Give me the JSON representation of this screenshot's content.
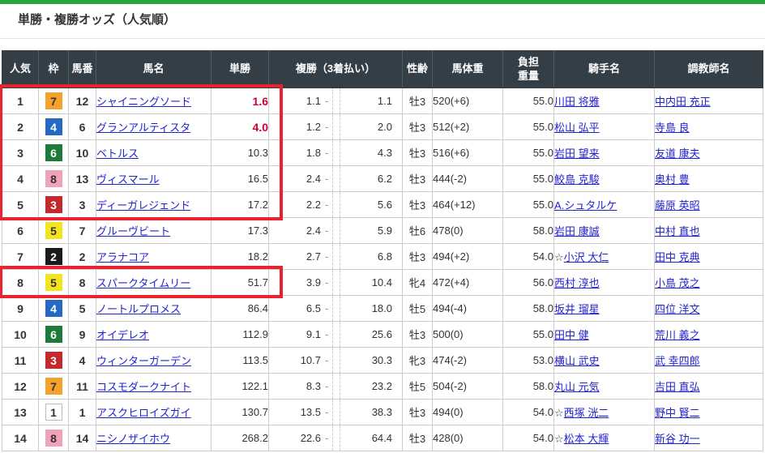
{
  "page": {
    "title": "単勝・複勝オッズ（人気順）"
  },
  "colors": {
    "accent_green": "#28a43c",
    "header_bg": "#333e47",
    "highlight_red": "#e8232d",
    "odds_red": "#cc0033",
    "link_blue": "#2222cc",
    "frame_colors": {
      "1": {
        "bg": "#ffffff",
        "text": "#333333",
        "border": "#bbbbbb"
      },
      "2": {
        "bg": "#1a1a1a",
        "text": "#ffffff",
        "border": "#1a1a1a"
      },
      "3": {
        "bg": "#c3282d",
        "text": "#ffffff",
        "border": "#c3282d"
      },
      "4": {
        "bg": "#2469c3",
        "text": "#ffffff",
        "border": "#2469c3"
      },
      "5": {
        "bg": "#f2e520",
        "text": "#333333",
        "border": "#f2e520"
      },
      "6": {
        "bg": "#1e7a38",
        "text": "#ffffff",
        "border": "#1e7a38"
      },
      "7": {
        "bg": "#f5a12d",
        "text": "#333333",
        "border": "#f5a12d"
      },
      "8": {
        "bg": "#f0a2b8",
        "text": "#333333",
        "border": "#f0a2b8"
      }
    }
  },
  "table": {
    "headers": [
      {
        "key": "rank",
        "label": "人気"
      },
      {
        "key": "frame",
        "label": "枠"
      },
      {
        "key": "uma",
        "label": "馬番"
      },
      {
        "key": "horse",
        "label": "馬名"
      },
      {
        "key": "win",
        "label": "単勝"
      },
      {
        "key": "place",
        "label": "複勝（3着払い）"
      },
      {
        "key": "sex",
        "label": "性齢"
      },
      {
        "key": "weight",
        "label": "馬体重"
      },
      {
        "key": "load",
        "label": "負担\n重量"
      },
      {
        "key": "jockey",
        "label": "騎手名"
      },
      {
        "key": "trainer",
        "label": "調教師名"
      }
    ],
    "rows": [
      {
        "rank": "1",
        "frame": "7",
        "uma": "12",
        "horse": "シャイニングソード",
        "win": "1.6",
        "win_emphasis": true,
        "place_low": "1.1",
        "place_high": "1.1",
        "sex_age": "牡3",
        "weight": "520(+6)",
        "load": "55.0",
        "jockey_mark": "",
        "jockey": "川田 将雅",
        "trainer": "中内田 充正"
      },
      {
        "rank": "2",
        "frame": "4",
        "uma": "6",
        "horse": "グランアルティスタ",
        "win": "4.0",
        "win_emphasis": true,
        "place_low": "1.2",
        "place_high": "2.0",
        "sex_age": "牡3",
        "weight": "512(+2)",
        "load": "55.0",
        "jockey_mark": "",
        "jockey": "松山 弘平",
        "trainer": "寺島 良"
      },
      {
        "rank": "3",
        "frame": "6",
        "uma": "10",
        "horse": "ベトルス",
        "win": "10.3",
        "win_emphasis": false,
        "place_low": "1.8",
        "place_high": "4.3",
        "sex_age": "牡3",
        "weight": "516(+6)",
        "load": "55.0",
        "jockey_mark": "",
        "jockey": "岩田 望来",
        "trainer": "友道 康夫"
      },
      {
        "rank": "4",
        "frame": "8",
        "uma": "13",
        "horse": "ヴィスマール",
        "win": "16.5",
        "win_emphasis": false,
        "place_low": "2.4",
        "place_high": "6.2",
        "sex_age": "牡3",
        "weight": "444(-2)",
        "load": "55.0",
        "jockey_mark": "",
        "jockey": "鮫島 克駿",
        "trainer": "奥村 豊"
      },
      {
        "rank": "5",
        "frame": "3",
        "uma": "3",
        "horse": "ディーガレジェンド",
        "win": "17.2",
        "win_emphasis": false,
        "place_low": "2.2",
        "place_high": "5.6",
        "sex_age": "牡3",
        "weight": "464(+12)",
        "load": "55.0",
        "jockey_mark": "",
        "jockey": "A.シュタルケ",
        "trainer": "藤原 英昭"
      },
      {
        "rank": "6",
        "frame": "5",
        "uma": "7",
        "horse": "グルーヴビート",
        "win": "17.3",
        "win_emphasis": false,
        "place_low": "2.4",
        "place_high": "5.9",
        "sex_age": "牡6",
        "weight": "478(0)",
        "load": "58.0",
        "jockey_mark": "",
        "jockey": "岩田 康誠",
        "trainer": "中村 直也"
      },
      {
        "rank": "7",
        "frame": "2",
        "uma": "2",
        "horse": "アラナコア",
        "win": "18.2",
        "win_emphasis": false,
        "place_low": "2.7",
        "place_high": "6.8",
        "sex_age": "牡3",
        "weight": "494(+2)",
        "load": "54.0",
        "jockey_mark": "☆",
        "jockey": "小沢 大仁",
        "trainer": "田中 克典"
      },
      {
        "rank": "8",
        "frame": "5",
        "uma": "8",
        "horse": "スパークタイムリー",
        "win": "51.7",
        "win_emphasis": false,
        "place_low": "3.9",
        "place_high": "10.4",
        "sex_age": "牝4",
        "weight": "472(+4)",
        "load": "56.0",
        "jockey_mark": "",
        "jockey": "西村 淳也",
        "trainer": "小島 茂之"
      },
      {
        "rank": "9",
        "frame": "4",
        "uma": "5",
        "horse": "ノートルプロメス",
        "win": "86.4",
        "win_emphasis": false,
        "place_low": "6.5",
        "place_high": "18.0",
        "sex_age": "牡5",
        "weight": "494(-4)",
        "load": "58.0",
        "jockey_mark": "",
        "jockey": "坂井 瑠星",
        "trainer": "四位 洋文"
      },
      {
        "rank": "10",
        "frame": "6",
        "uma": "9",
        "horse": "オイデレオ",
        "win": "112.9",
        "win_emphasis": false,
        "place_low": "9.1",
        "place_high": "25.6",
        "sex_age": "牡3",
        "weight": "500(0)",
        "load": "55.0",
        "jockey_mark": "",
        "jockey": "田中 健",
        "trainer": "荒川 義之"
      },
      {
        "rank": "11",
        "frame": "3",
        "uma": "4",
        "horse": "ウィンターガーデン",
        "win": "113.5",
        "win_emphasis": false,
        "place_low": "10.7",
        "place_high": "30.3",
        "sex_age": "牝3",
        "weight": "474(-2)",
        "load": "53.0",
        "jockey_mark": "",
        "jockey": "横山 武史",
        "trainer": "武 幸四郎"
      },
      {
        "rank": "12",
        "frame": "7",
        "uma": "11",
        "horse": "コスモダークナイト",
        "win": "122.1",
        "win_emphasis": false,
        "place_low": "8.3",
        "place_high": "23.2",
        "sex_age": "牡5",
        "weight": "504(-2)",
        "load": "58.0",
        "jockey_mark": "",
        "jockey": "丸山 元気",
        "trainer": "吉田 直弘"
      },
      {
        "rank": "13",
        "frame": "1",
        "uma": "1",
        "horse": "アスクヒロイズガイ",
        "win": "130.7",
        "win_emphasis": false,
        "place_low": "13.5",
        "place_high": "38.3",
        "sex_age": "牡3",
        "weight": "494(0)",
        "load": "54.0",
        "jockey_mark": "☆",
        "jockey": "西塚 洸二",
        "trainer": "野中 賢二"
      },
      {
        "rank": "14",
        "frame": "8",
        "uma": "14",
        "horse": "ニシノザイホウ",
        "win": "268.2",
        "win_emphasis": false,
        "place_low": "22.6",
        "place_high": "64.4",
        "sex_age": "牡3",
        "weight": "428(0)",
        "load": "54.0",
        "jockey_mark": "☆",
        "jockey": "松本 大輝",
        "trainer": "新谷 功一"
      }
    ],
    "highlights": [
      {
        "row_start": 1,
        "row_end": 5
      },
      {
        "row_start": 8,
        "row_end": 8
      }
    ]
  }
}
